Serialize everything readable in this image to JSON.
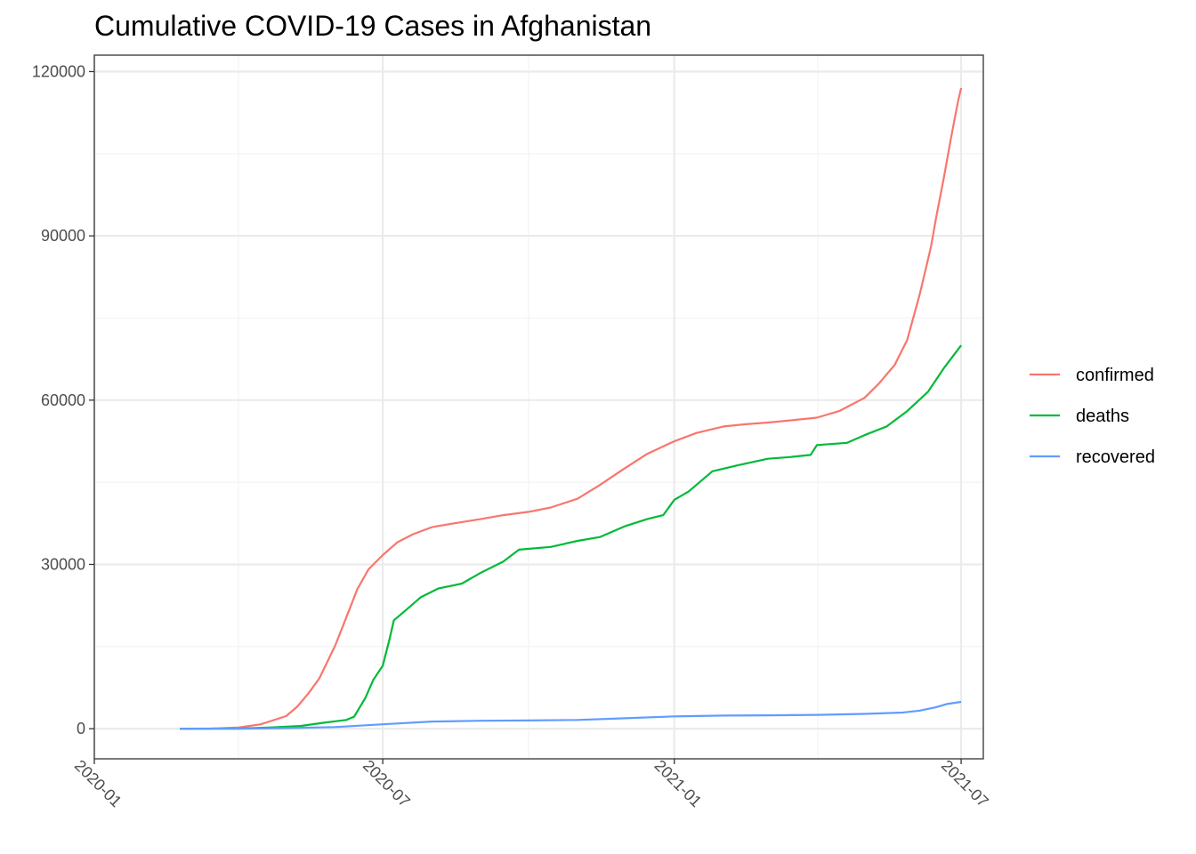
{
  "chart_data": {
    "type": "line",
    "title": "Cumulative COVID-19 Cases in Afghanistan",
    "xlabel": "",
    "ylabel": "",
    "x_axis_type": "date",
    "xlim": [
      "2020-01-01",
      "2021-07-15"
    ],
    "ylim": [
      -5500,
      123000
    ],
    "x_ticks": [
      {
        "value": "2020-01-01",
        "label": "2020-01"
      },
      {
        "value": "2020-07-01",
        "label": "2020-07"
      },
      {
        "value": "2021-01-01",
        "label": "2021-01"
      },
      {
        "value": "2021-07-01",
        "label": "2021-07"
      }
    ],
    "y_ticks": [
      {
        "value": 0,
        "label": "0"
      },
      {
        "value": 30000,
        "label": "30000"
      },
      {
        "value": 60000,
        "label": "60000"
      },
      {
        "value": 90000,
        "label": "90000"
      },
      {
        "value": 120000,
        "label": "120000"
      }
    ],
    "grid": true,
    "legend_position": "right",
    "series": [
      {
        "name": "confirmed",
        "color": "#F8766D",
        "points": [
          [
            "2020-02-24",
            0
          ],
          [
            "2020-03-15",
            20
          ],
          [
            "2020-04-01",
            200
          ],
          [
            "2020-04-15",
            800
          ],
          [
            "2020-05-01",
            2300
          ],
          [
            "2020-05-08",
            4000
          ],
          [
            "2020-05-15",
            6400
          ],
          [
            "2020-05-22",
            9200
          ],
          [
            "2020-06-01",
            15200
          ],
          [
            "2020-06-08",
            20300
          ],
          [
            "2020-06-15",
            25500
          ],
          [
            "2020-06-22",
            29100
          ],
          [
            "2020-07-01",
            31700
          ],
          [
            "2020-07-10",
            34000
          ],
          [
            "2020-07-20",
            35500
          ],
          [
            "2020-08-01",
            36800
          ],
          [
            "2020-08-15",
            37500
          ],
          [
            "2020-09-01",
            38300
          ],
          [
            "2020-09-15",
            39000
          ],
          [
            "2020-10-01",
            39600
          ],
          [
            "2020-10-15",
            40400
          ],
          [
            "2020-11-01",
            42000
          ],
          [
            "2020-11-15",
            44500
          ],
          [
            "2020-12-01",
            47600
          ],
          [
            "2020-12-15",
            50200
          ],
          [
            "2021-01-01",
            52500
          ],
          [
            "2021-01-15",
            54000
          ],
          [
            "2021-02-01",
            55200
          ],
          [
            "2021-02-15",
            55600
          ],
          [
            "2021-03-01",
            55900
          ],
          [
            "2021-03-15",
            56300
          ],
          [
            "2021-04-01",
            56800
          ],
          [
            "2021-04-15",
            58000
          ],
          [
            "2021-05-01",
            60400
          ],
          [
            "2021-05-10",
            63000
          ],
          [
            "2021-05-20",
            66400
          ],
          [
            "2021-05-28",
            71000
          ],
          [
            "2021-06-05",
            79500
          ],
          [
            "2021-06-12",
            88000
          ],
          [
            "2021-06-15",
            93000
          ],
          [
            "2021-06-20",
            100500
          ],
          [
            "2021-06-25",
            108500
          ],
          [
            "2021-06-29",
            114500
          ],
          [
            "2021-07-01",
            117000
          ]
        ]
      },
      {
        "name": "deaths",
        "color": "#00BA38",
        "points": [
          [
            "2020-02-24",
            0
          ],
          [
            "2020-04-01",
            20
          ],
          [
            "2020-04-20",
            200
          ],
          [
            "2020-05-10",
            500
          ],
          [
            "2020-05-25",
            1100
          ],
          [
            "2020-06-08",
            1600
          ],
          [
            "2020-06-13",
            2200
          ],
          [
            "2020-06-20",
            5600
          ],
          [
            "2020-06-25",
            8900
          ],
          [
            "2020-07-01",
            11500
          ],
          [
            "2020-07-05",
            16000
          ],
          [
            "2020-07-08",
            19800
          ],
          [
            "2020-07-15",
            21500
          ],
          [
            "2020-07-25",
            24000
          ],
          [
            "2020-08-05",
            25600
          ],
          [
            "2020-08-20",
            26500
          ],
          [
            "2020-09-01",
            28500
          ],
          [
            "2020-09-15",
            30500
          ],
          [
            "2020-09-25",
            32700
          ],
          [
            "2020-10-15",
            33200
          ],
          [
            "2020-11-01",
            34300
          ],
          [
            "2020-11-15",
            35000
          ],
          [
            "2020-12-01",
            37000
          ],
          [
            "2020-12-15",
            38300
          ],
          [
            "2020-12-25",
            39000
          ],
          [
            "2021-01-01",
            41800
          ],
          [
            "2021-01-10",
            43300
          ],
          [
            "2021-01-25",
            47000
          ],
          [
            "2021-02-10",
            48100
          ],
          [
            "2021-03-01",
            49300
          ],
          [
            "2021-03-15",
            49600
          ],
          [
            "2021-03-28",
            50000
          ],
          [
            "2021-04-01",
            51800
          ],
          [
            "2021-04-20",
            52200
          ],
          [
            "2021-05-01",
            53600
          ],
          [
            "2021-05-15",
            55200
          ],
          [
            "2021-05-28",
            58000
          ],
          [
            "2021-06-10",
            61500
          ],
          [
            "2021-06-20",
            65800
          ],
          [
            "2021-07-01",
            70000
          ]
        ]
      },
      {
        "name": "recovered",
        "color": "#619CFF",
        "points": [
          [
            "2020-02-24",
            0
          ],
          [
            "2020-04-01",
            5
          ],
          [
            "2020-05-01",
            100
          ],
          [
            "2020-06-01",
            300
          ],
          [
            "2020-07-01",
            800
          ],
          [
            "2020-08-01",
            1300
          ],
          [
            "2020-09-01",
            1450
          ],
          [
            "2020-10-01",
            1500
          ],
          [
            "2020-11-01",
            1600
          ],
          [
            "2020-12-01",
            1900
          ],
          [
            "2021-01-01",
            2250
          ],
          [
            "2021-02-01",
            2400
          ],
          [
            "2021-03-01",
            2450
          ],
          [
            "2021-04-01",
            2520
          ],
          [
            "2021-05-01",
            2700
          ],
          [
            "2021-05-25",
            2950
          ],
          [
            "2021-06-05",
            3300
          ],
          [
            "2021-06-15",
            3900
          ],
          [
            "2021-06-22",
            4500
          ],
          [
            "2021-07-01",
            4900
          ]
        ]
      }
    ]
  }
}
